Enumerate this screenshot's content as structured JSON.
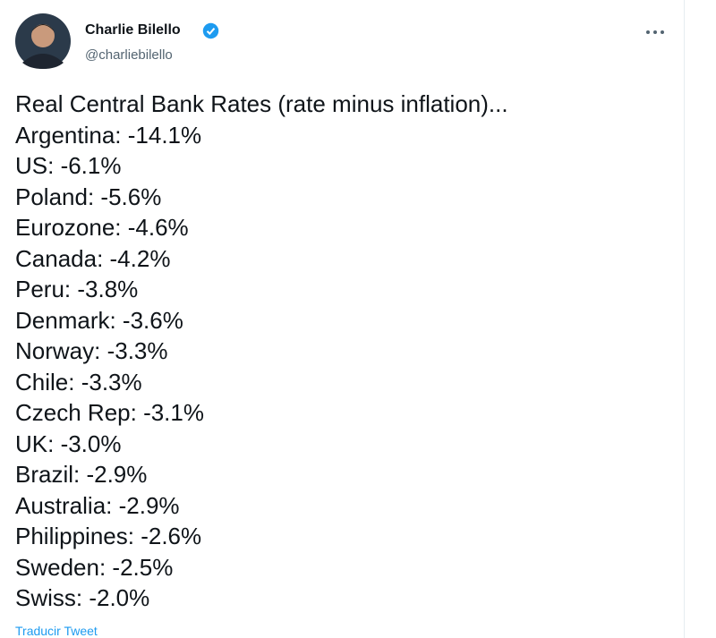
{
  "header": {
    "name": "Charlie Bilello",
    "handle": "@charliebilello"
  },
  "tweet": {
    "lines": [
      "Real Central Bank Rates (rate minus inflation)...",
      "Argentina: -14.1%",
      "US: -6.1%",
      "Poland: -5.6%",
      "Eurozone: -4.6%",
      "Canada: -4.2%",
      "Peru: -3.8%",
      "Denmark: -3.6%",
      "Norway: -3.3%",
      "Chile: -3.3%",
      "Czech Rep: -3.1%",
      "UK: -3.0%",
      "Brazil: -2.9%",
      "Australia: -2.9%",
      "Philippines: -2.6%",
      "Sweden: -2.5%",
      "Swiss: -2.0%"
    ],
    "translate": "Traducir Tweet"
  }
}
